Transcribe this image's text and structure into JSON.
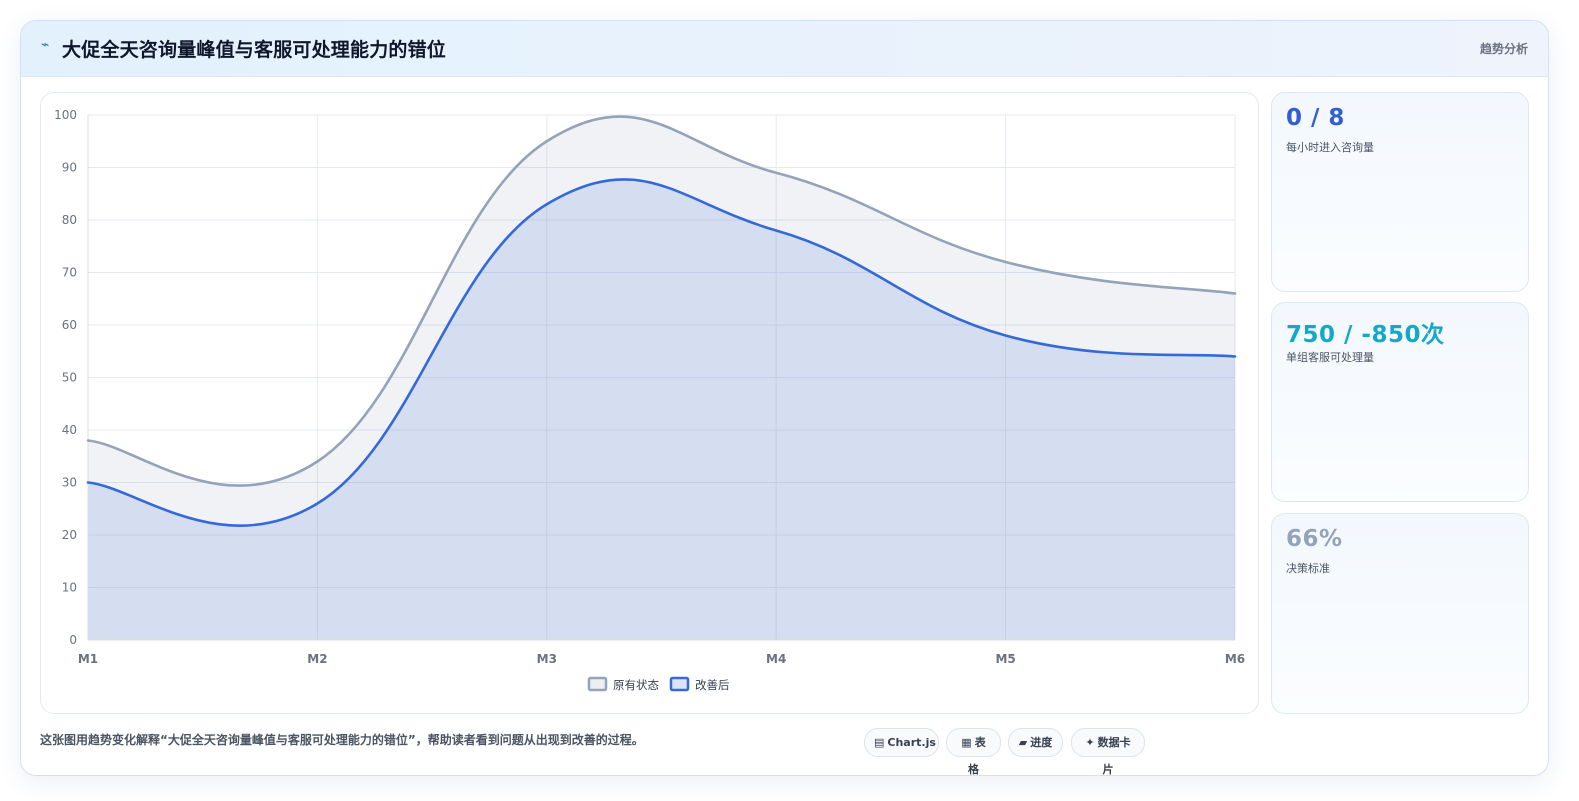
{
  "header": {
    "icon": "lightning-icon",
    "title": "大促全天咨询量峰值与客服可处理能力的错位",
    "tag": "趋势分析"
  },
  "chart_data": {
    "type": "area",
    "x": [
      "M1",
      "M2",
      "M3",
      "M4",
      "M5",
      "M6"
    ],
    "ylim": [
      0,
      100
    ],
    "yticks": [
      0,
      10,
      20,
      30,
      40,
      50,
      60,
      70,
      80,
      90,
      100
    ],
    "grid": true,
    "legend": "bottom",
    "series": [
      {
        "name": "原有状态",
        "values": [
          38,
          34,
          95,
          89,
          72,
          66
        ],
        "color": "#94a3b8",
        "fill": "rgba(148,163,184,0.14)"
      },
      {
        "name": "改善后",
        "values": [
          30,
          26,
          83,
          78,
          58,
          54
        ],
        "color": "#3569d8",
        "fill": "rgba(53,105,216,0.14)"
      }
    ]
  },
  "stats": [
    {
      "value": "0 / 8",
      "label": "每小时进入咨询量",
      "color": "#2f5fd0"
    },
    {
      "value": "750 / -850次",
      "label": "单组客服可处理量",
      "color": "#14a8c8"
    },
    {
      "value": "66%",
      "label": "决策标准",
      "color": "#94a3b8"
    }
  ],
  "footer": {
    "text": "这张图用趋势变化解释“大促全天咨询量峰值与客服可处理能力的错位”，帮助读者看到问题从出现到改善的过程。",
    "chips": [
      {
        "icon": "chart-icon",
        "glyph": "▤",
        "label": "Chart.js"
      },
      {
        "icon": "table-icon",
        "glyph": "▦",
        "label": "表格"
      },
      {
        "icon": "progress-icon",
        "glyph": "▰",
        "label": "进度"
      },
      {
        "icon": "card-icon",
        "glyph": "✦",
        "label": "数据卡片"
      }
    ]
  }
}
